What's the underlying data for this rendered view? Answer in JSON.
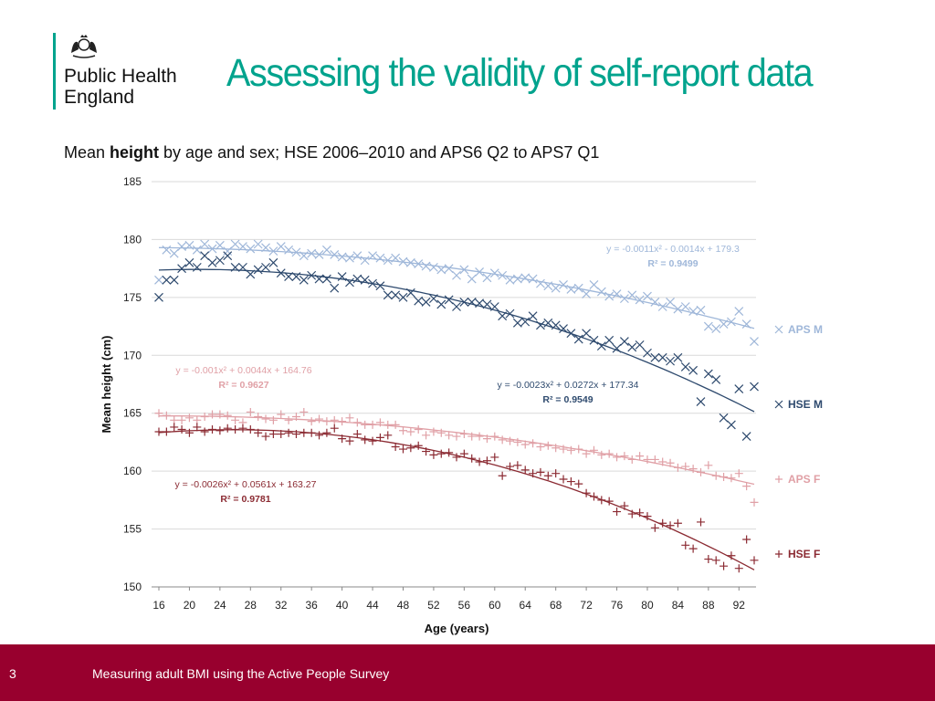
{
  "header": {
    "logo_line1": "Public Health",
    "logo_line2": "England",
    "title": "Assessing the validity of self-report data"
  },
  "subtitle": {
    "pre": "Mean ",
    "bold": "height",
    "post": " by age and sex; HSE 2006–2010 and APS6 Q2 to APS7 Q1"
  },
  "footer": {
    "page_number": "3",
    "text": "Measuring adult BMI using the Active People Survey"
  },
  "colors": {
    "title": "#00a38d",
    "footer_bg": "#98002e",
    "aps_m": "#9fb7d9",
    "hse_m": "#2e4a6e",
    "aps_f": "#e0a0a6",
    "hse_f": "#8b2a32",
    "grid": "#d9d9d9"
  },
  "chart_data": {
    "type": "scatter",
    "title": "",
    "xlabel": "Age (years)",
    "ylabel": "Mean height (cm)",
    "xlim": [
      16,
      94
    ],
    "ylim": [
      150,
      185
    ],
    "xticks": [
      16,
      20,
      24,
      28,
      32,
      36,
      40,
      44,
      48,
      52,
      56,
      60,
      64,
      68,
      72,
      76,
      80,
      84,
      88,
      92
    ],
    "yticks": [
      150,
      155,
      160,
      165,
      170,
      175,
      180,
      185
    ],
    "grid": "horizontal",
    "legend_position": "right",
    "x": [
      16,
      17,
      18,
      19,
      20,
      21,
      22,
      23,
      24,
      25,
      26,
      27,
      28,
      29,
      30,
      31,
      32,
      33,
      34,
      35,
      36,
      37,
      38,
      39,
      40,
      41,
      42,
      43,
      44,
      45,
      46,
      47,
      48,
      49,
      50,
      51,
      52,
      53,
      54,
      55,
      56,
      57,
      58,
      59,
      60,
      61,
      62,
      63,
      64,
      65,
      66,
      67,
      68,
      69,
      70,
      71,
      72,
      73,
      74,
      75,
      76,
      77,
      78,
      79,
      80,
      81,
      82,
      83,
      84,
      85,
      86,
      87,
      88,
      89,
      90,
      91,
      92,
      93,
      94
    ],
    "series": [
      {
        "name": "APS M",
        "marker": "x",
        "trendline": {
          "equation": "y = -0.0011x² - 0.0014x + 179.3",
          "r2": "R² = 0.9499"
        },
        "values": [
          176.5,
          179.1,
          178.8,
          179.4,
          179.5,
          179.1,
          179.6,
          179.2,
          179.5,
          179.0,
          179.6,
          179.4,
          179.2,
          179.6,
          179.3,
          179.0,
          179.4,
          179.1,
          178.9,
          178.6,
          178.8,
          178.7,
          179.1,
          178.7,
          178.5,
          178.4,
          178.6,
          178.2,
          178.6,
          178.4,
          178.2,
          178.4,
          178.1,
          178.0,
          177.9,
          177.7,
          177.6,
          177.4,
          177.5,
          176.9,
          177.4,
          176.6,
          177.2,
          176.7,
          177.1,
          176.9,
          176.5,
          176.6,
          176.7,
          176.6,
          176.2,
          176.0,
          175.8,
          176.1,
          175.7,
          175.8,
          175.3,
          176.1,
          175.5,
          175.1,
          175.3,
          174.9,
          175.2,
          174.8,
          175.1,
          174.6,
          174.2,
          174.6,
          174.0,
          174.2,
          173.8,
          173.9,
          172.5,
          172.3,
          172.7,
          172.9,
          173.8,
          172.7,
          171.2
        ]
      },
      {
        "name": "HSE M",
        "marker": "x",
        "trendline": {
          "equation": "y = -0.0023x² + 0.0272x + 177.34",
          "r2": "R² = 0.9549"
        },
        "values": [
          175.0,
          176.5,
          176.5,
          177.5,
          178.0,
          177.6,
          178.6,
          178.0,
          178.2,
          178.6,
          177.6,
          177.6,
          177.0,
          177.4,
          177.6,
          178.0,
          177.1,
          176.8,
          176.8,
          176.5,
          176.9,
          176.6,
          176.6,
          175.8,
          176.8,
          176.3,
          176.6,
          176.5,
          176.2,
          176.0,
          175.2,
          175.2,
          175.0,
          175.4,
          174.7,
          174.6,
          174.9,
          174.4,
          174.8,
          174.2,
          174.6,
          174.6,
          174.5,
          174.4,
          174.2,
          173.4,
          173.6,
          172.8,
          172.9,
          173.4,
          172.6,
          172.8,
          172.6,
          172.3,
          171.9,
          171.4,
          171.9,
          171.3,
          170.8,
          171.3,
          170.6,
          171.2,
          170.7,
          170.9,
          170.2,
          169.8,
          169.8,
          169.5,
          169.8,
          169.0,
          168.7,
          166.0,
          168.4,
          167.9,
          164.6,
          164.0,
          167.1,
          163.0,
          167.3
        ]
      },
      {
        "name": "APS F",
        "marker": "+",
        "trendline": {
          "equation": "y = -0.001x² + 0.0044x + 164.76",
          "r2": "R² = 0.9627"
        },
        "values": [
          165.0,
          164.8,
          164.4,
          164.4,
          164.6,
          164.4,
          164.7,
          164.9,
          164.9,
          164.8,
          164.4,
          164.2,
          165.1,
          164.7,
          164.5,
          164.4,
          164.9,
          164.4,
          164.7,
          165.1,
          164.3,
          164.5,
          164.3,
          164.4,
          164.3,
          164.6,
          164.2,
          164.0,
          164.0,
          164.2,
          164.0,
          164.0,
          163.5,
          163.4,
          163.6,
          163.1,
          163.4,
          163.3,
          163.1,
          163.0,
          163.2,
          163.0,
          163.0,
          162.8,
          163.0,
          162.7,
          162.6,
          162.5,
          162.3,
          162.4,
          162.1,
          162.2,
          162.0,
          161.9,
          161.8,
          161.9,
          161.5,
          161.8,
          161.4,
          161.5,
          161.2,
          161.3,
          161.0,
          161.3,
          161.0,
          161.0,
          160.8,
          160.7,
          160.3,
          160.4,
          160.2,
          159.9,
          160.5,
          159.6,
          159.5,
          159.4,
          159.8,
          158.7,
          157.3
        ]
      },
      {
        "name": "HSE F",
        "marker": "+",
        "trendline": {
          "equation": "y = -0.0026x² + 0.0561x + 163.27",
          "r2": "R² = 0.9781"
        },
        "values": [
          163.4,
          163.4,
          163.8,
          163.6,
          163.3,
          163.8,
          163.4,
          163.6,
          163.5,
          163.7,
          163.6,
          163.7,
          163.6,
          163.3,
          163.0,
          163.2,
          163.2,
          163.3,
          163.2,
          163.3,
          163.3,
          163.1,
          163.3,
          163.7,
          162.8,
          162.6,
          163.2,
          162.7,
          162.6,
          162.9,
          163.1,
          162.1,
          161.9,
          162.0,
          162.2,
          161.7,
          161.4,
          161.5,
          161.6,
          161.2,
          161.5,
          161.1,
          160.8,
          160.9,
          161.2,
          159.6,
          160.4,
          160.5,
          160.1,
          159.8,
          159.9,
          159.6,
          159.8,
          159.3,
          159.1,
          158.9,
          158.1,
          157.8,
          157.5,
          157.4,
          156.5,
          157.0,
          156.3,
          156.4,
          156.1,
          155.1,
          155.5,
          155.3,
          155.5,
          153.6,
          153.3,
          155.6,
          152.4,
          152.3,
          151.8,
          152.7,
          151.6,
          154.1,
          152.3
        ]
      }
    ]
  }
}
